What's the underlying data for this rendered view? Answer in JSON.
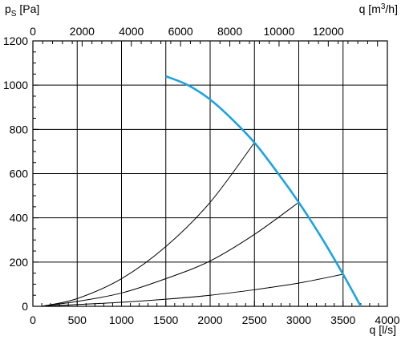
{
  "chart_data": {
    "type": "line",
    "ylabel": {
      "main": "p",
      "sub": "S",
      "unit": " [Pa]"
    },
    "xlabel_bottom": "q [l/s]",
    "xlabel_top": {
      "main": "q [m",
      "sup": "3",
      "tail": "/h]"
    },
    "xlim": [
      0,
      4000
    ],
    "ylim": [
      0,
      1200
    ],
    "top_axis_ticks": [
      0,
      2000,
      4000,
      6000,
      8000,
      10000,
      12000
    ],
    "top_axis_factor": 3.6,
    "x_major_ticks": [
      0,
      500,
      1000,
      1500,
      2000,
      2500,
      3000,
      3500,
      4000
    ],
    "y_major_ticks": [
      0,
      200,
      400,
      600,
      800,
      1000,
      1200
    ],
    "x_minor_step": 100,
    "y_minor_step": 50,
    "grid": true,
    "fan_curve": {
      "color": "#1ba3e0",
      "x": [
        1500,
        1750,
        2000,
        2250,
        2500,
        2750,
        3000,
        3250,
        3500,
        3700
      ],
      "y": [
        1040,
        1000,
        935,
        845,
        740,
        610,
        470,
        315,
        145,
        0
      ]
    },
    "system_curves": [
      {
        "x": [
          100,
          500,
          1000,
          1500,
          2000,
          2500
        ],
        "y": [
          0,
          35,
          125,
          270,
          470,
          740
        ]
      },
      {
        "x": [
          100,
          500,
          1000,
          1500,
          2000,
          2500,
          3000
        ],
        "y": [
          0,
          22,
          60,
          125,
          205,
          325,
          470
        ]
      },
      {
        "x": [
          100,
          500,
          1000,
          1500,
          2000,
          2500,
          3000,
          3500
        ],
        "y": [
          0,
          8,
          18,
          32,
          50,
          75,
          105,
          145
        ]
      }
    ]
  }
}
